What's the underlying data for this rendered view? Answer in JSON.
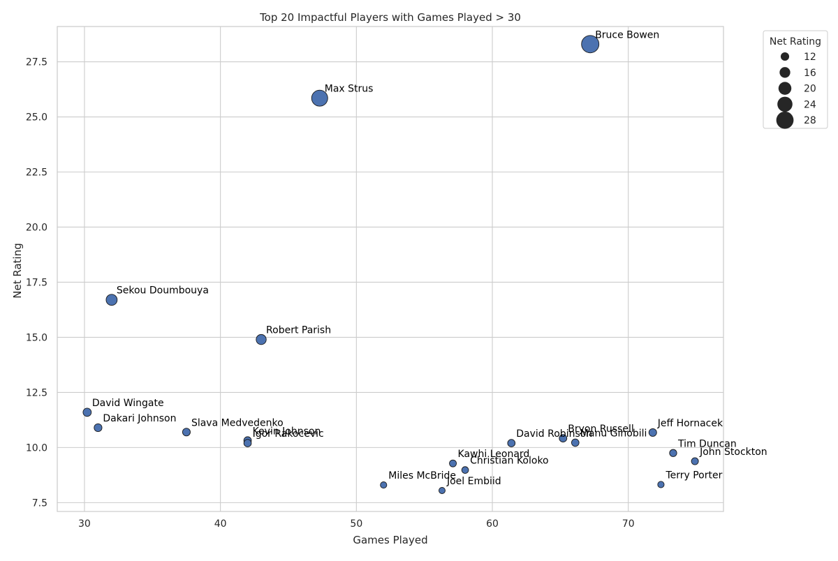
{
  "chart_data": {
    "type": "scatter",
    "title": "Top 20 Impactful Players with Games Played > 30",
    "xlabel": "Games Played",
    "ylabel": "Net Rating",
    "xlim": [
      28,
      77
    ],
    "ylim": [
      7.1,
      29.1
    ],
    "x_ticks": [
      30,
      40,
      50,
      60,
      70
    ],
    "y_ticks": [
      7.5,
      10.0,
      12.5,
      15.0,
      17.5,
      20.0,
      22.5,
      25.0,
      27.5
    ],
    "grid": true,
    "marker_color": "#4C72B0",
    "edge_color": "#1a1a1a",
    "size_encoding": "Net Rating",
    "legend": {
      "title": "Net Rating",
      "placement": "outside-top-right",
      "entries": [
        "12",
        "16",
        "20",
        "24",
        "28"
      ]
    },
    "points": [
      {
        "name": "Bruce Bowen",
        "x": 67.2,
        "y": 28.3
      },
      {
        "name": "Max Strus",
        "x": 47.3,
        "y": 25.85
      },
      {
        "name": "Sekou Doumbouya",
        "x": 32.0,
        "y": 16.7
      },
      {
        "name": "Robert Parish",
        "x": 43.0,
        "y": 14.9
      },
      {
        "name": "David Wingate",
        "x": 30.2,
        "y": 11.6
      },
      {
        "name": "Dakari Johnson",
        "x": 31.0,
        "y": 10.9
      },
      {
        "name": "Slava Medvedenko",
        "x": 37.5,
        "y": 10.7
      },
      {
        "name": "Kevin Johnson",
        "x": 42.0,
        "y": 10.32
      },
      {
        "name": "Igor Rakocevic",
        "x": 42.0,
        "y": 10.2
      },
      {
        "name": "David Robinson",
        "x": 61.4,
        "y": 10.2
      },
      {
        "name": "Bryon Russell",
        "x": 65.2,
        "y": 10.42
      },
      {
        "name": "Manu Ginobili",
        "x": 66.1,
        "y": 10.22
      },
      {
        "name": "Jeff Hornacek",
        "x": 71.8,
        "y": 10.68
      },
      {
        "name": "Tim Duncan",
        "x": 73.3,
        "y": 9.75
      },
      {
        "name": "John Stockton",
        "x": 74.9,
        "y": 9.38
      },
      {
        "name": "Kawhi Leonard",
        "x": 57.1,
        "y": 9.28
      },
      {
        "name": "Christian Koloko",
        "x": 58.0,
        "y": 8.98
      },
      {
        "name": "Terry Porter",
        "x": 72.4,
        "y": 8.32
      },
      {
        "name": "Miles McBride",
        "x": 52.0,
        "y": 8.3
      },
      {
        "name": "Joel Embiid",
        "x": 56.3,
        "y": 8.05
      }
    ]
  }
}
